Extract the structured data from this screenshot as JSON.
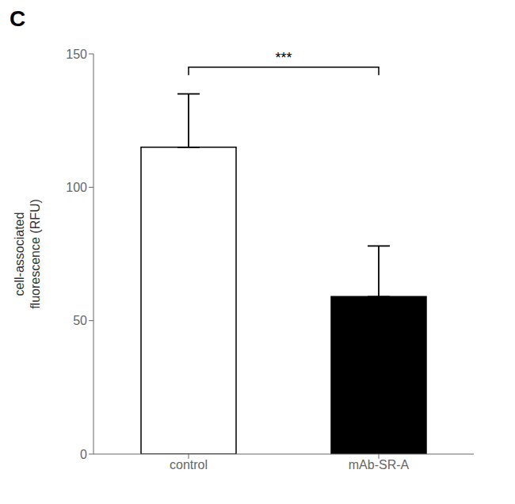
{
  "chart_data": {
    "type": "bar",
    "categories": [
      "control",
      "mAb-SR-A"
    ],
    "values": [
      115.0,
      59.0
    ],
    "errors_up": [
      20.0,
      19.0
    ],
    "colors": [
      "#ffffff",
      "#000000"
    ],
    "ylabel": "cell-associated\nfluorescence (RFU)",
    "ylim": [
      0,
      150
    ],
    "yticks": [
      0,
      50,
      100,
      150
    ],
    "grid": false,
    "annotations": [
      {
        "text": "C"
      },
      {
        "text": "***",
        "y": 145,
        "between": [
          "control",
          "mAb-SR-A"
        ]
      }
    ]
  }
}
